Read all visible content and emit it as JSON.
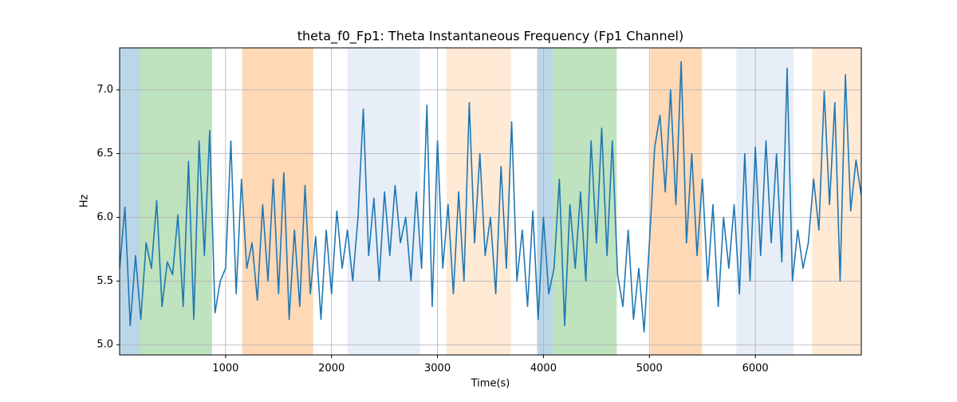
{
  "chart_data": {
    "type": "line",
    "title": "theta_f0_Fp1: Theta Instantaneous Frequency (Fp1 Channel)",
    "xlabel": "Time(s)",
    "ylabel": "Hz",
    "color": "#1f77b4",
    "grid": true,
    "xlim": [
      0,
      7000
    ],
    "ylim": [
      4.92,
      7.33
    ],
    "xticks": [
      1000,
      2000,
      3000,
      4000,
      5000,
      6000
    ],
    "yticks": [
      {
        "value": 5,
        "label": "5.0"
      },
      {
        "value": 5.5,
        "label": "5.5"
      },
      {
        "value": 6,
        "label": "6.0"
      },
      {
        "value": 6.5,
        "label": "6.5"
      },
      {
        "value": 7,
        "label": "7.0"
      }
    ],
    "spans": [
      {
        "start": 0,
        "end": 195,
        "color": "#1f77b4",
        "alpha": 0.3
      },
      {
        "start": 195,
        "end": 872,
        "color": "#2ca02c",
        "alpha": 0.3
      },
      {
        "start": 1158,
        "end": 1827,
        "color": "#ff7f0e",
        "alpha": 0.3
      },
      {
        "start": 2150,
        "end": 2835,
        "color": "#aec7e8",
        "alpha": 0.3
      },
      {
        "start": 3083,
        "end": 3692,
        "color": "#ffbb78",
        "alpha": 0.3
      },
      {
        "start": 3940,
        "end": 4090,
        "color": "#1f77b4",
        "alpha": 0.3
      },
      {
        "start": 4090,
        "end": 4692,
        "color": "#2ca02c",
        "alpha": 0.3
      },
      {
        "start": 5008,
        "end": 5496,
        "color": "#ff7f0e",
        "alpha": 0.3
      },
      {
        "start": 5820,
        "end": 6361,
        "color": "#aec7e8",
        "alpha": 0.3
      },
      {
        "start": 6534,
        "end": 7000,
        "color": "#ffbb78",
        "alpha": 0.3
      }
    ],
    "x": [
      0,
      50,
      100,
      150,
      200,
      250,
      300,
      350,
      400,
      450,
      500,
      550,
      600,
      650,
      700,
      750,
      800,
      850,
      900,
      950,
      1000,
      1050,
      1100,
      1150,
      1200,
      1250,
      1300,
      1350,
      1400,
      1450,
      1500,
      1550,
      1600,
      1650,
      1700,
      1750,
      1800,
      1850,
      1900,
      1950,
      2000,
      2050,
      2100,
      2150,
      2200,
      2250,
      2300,
      2350,
      2400,
      2450,
      2500,
      2550,
      2600,
      2650,
      2700,
      2750,
      2800,
      2850,
      2900,
      2950,
      3000,
      3050,
      3100,
      3150,
      3200,
      3250,
      3300,
      3350,
      3400,
      3450,
      3500,
      3550,
      3600,
      3650,
      3700,
      3750,
      3800,
      3850,
      3900,
      3950,
      4000,
      4050,
      4100,
      4150,
      4200,
      4250,
      4300,
      4350,
      4400,
      4450,
      4500,
      4550,
      4600,
      4650,
      4700,
      4750,
      4800,
      4850,
      4900,
      4950,
      5000,
      5050,
      5100,
      5150,
      5200,
      5250,
      5300,
      5350,
      5400,
      5450,
      5500,
      5550,
      5600,
      5650,
      5700,
      5750,
      5800,
      5850,
      5900,
      5950,
      6000,
      6050,
      6100,
      6150,
      6200,
      6250,
      6300,
      6350,
      6400,
      6450,
      6500,
      6550,
      6600,
      6650,
      6700,
      6750,
      6800,
      6850,
      6900,
      6950,
      7000
    ],
    "values": [
      5.6,
      6.08,
      5.15,
      5.7,
      5.2,
      5.8,
      5.6,
      6.13,
      5.3,
      5.65,
      5.55,
      6.02,
      5.3,
      6.44,
      5.2,
      6.6,
      5.7,
      6.68,
      5.25,
      5.5,
      5.6,
      6.6,
      5.4,
      6.3,
      5.6,
      5.8,
      5.35,
      6.1,
      5.5,
      6.3,
      5.4,
      6.35,
      5.2,
      5.9,
      5.3,
      6.25,
      5.4,
      5.85,
      5.2,
      5.9,
      5.4,
      6.05,
      5.6,
      5.9,
      5.5,
      6.0,
      6.85,
      5.7,
      6.15,
      5.5,
      6.2,
      5.7,
      6.25,
      5.8,
      6.0,
      5.5,
      6.2,
      5.6,
      6.88,
      5.3,
      6.6,
      5.6,
      6.1,
      5.4,
      6.2,
      5.5,
      6.9,
      5.8,
      6.5,
      5.7,
      6.0,
      5.4,
      6.4,
      5.6,
      6.75,
      5.5,
      5.9,
      5.3,
      6.05,
      5.2,
      6.0,
      5.4,
      5.6,
      6.3,
      5.15,
      6.1,
      5.6,
      6.2,
      5.5,
      6.6,
      5.8,
      6.7,
      5.7,
      6.6,
      5.55,
      5.3,
      5.9,
      5.2,
      5.6,
      5.1,
      5.8,
      6.55,
      6.8,
      6.2,
      7.0,
      6.1,
      7.22,
      5.8,
      6.5,
      5.7,
      6.3,
      5.5,
      6.1,
      5.3,
      6.0,
      5.6,
      6.1,
      5.4,
      6.5,
      5.5,
      6.55,
      5.7,
      6.6,
      5.8,
      6.5,
      5.65,
      7.17,
      5.5,
      5.9,
      5.6,
      5.8,
      6.3,
      5.9,
      6.99,
      6.1,
      6.9,
      5.5,
      7.12,
      6.05,
      6.45,
      6.17
    ]
  }
}
